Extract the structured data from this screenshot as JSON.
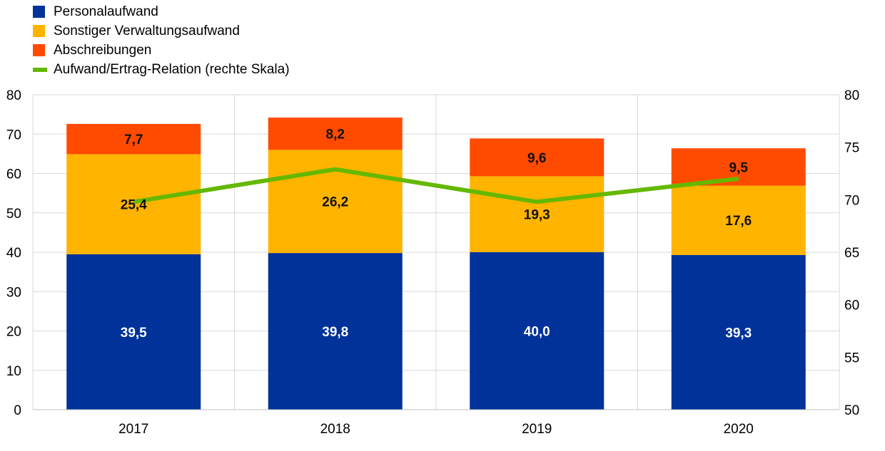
{
  "chart_data": {
    "type": "bar",
    "stacked": true,
    "categories": [
      "2017",
      "2018",
      "2019",
      "2020"
    ],
    "series": [
      {
        "name": "Personalaufwand",
        "color": "#003299",
        "values": [
          39.5,
          39.8,
          40.0,
          39.3
        ],
        "labels": [
          "39,5",
          "39,8",
          "40,0",
          "39,3"
        ]
      },
      {
        "name": "Sonstiger Verwaltungsaufwand",
        "color": "#FFB400",
        "values": [
          25.4,
          26.2,
          19.3,
          17.6
        ],
        "labels": [
          "25,4",
          "26,2",
          "19,3",
          "17,6"
        ]
      },
      {
        "name": "Abschreibungen",
        "color": "#FF4B00",
        "values": [
          7.7,
          8.2,
          9.6,
          9.5
        ],
        "labels": [
          "7,7",
          "8,2",
          "9,6",
          "9,5"
        ]
      }
    ],
    "line_series": {
      "name": "Aufwand/Ertrag-Relation (rechte Skala)",
      "color": "#65B800",
      "axis": "right",
      "values": [
        69.8,
        72.9,
        69.8,
        72.0
      ]
    },
    "y_left": {
      "min": 0,
      "max": 80,
      "ticks": [
        "0",
        "10",
        "20",
        "30",
        "40",
        "50",
        "60",
        "70",
        "80"
      ]
    },
    "y_right": {
      "min": 50,
      "max": 80,
      "ticks": [
        "50",
        "55",
        "60",
        "65",
        "70",
        "75",
        "80"
      ]
    },
    "grid": true,
    "legend": "top-left"
  }
}
